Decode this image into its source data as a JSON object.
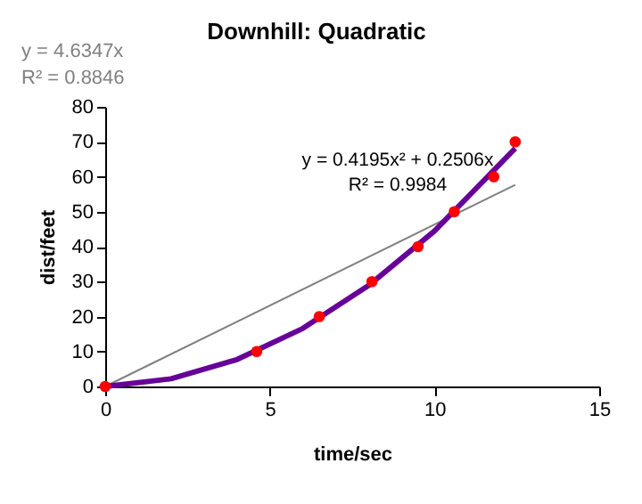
{
  "chart_data": {
    "type": "scatter",
    "title": "Downhill: Quadratic",
    "xlabel": "time/sec",
    "ylabel": "dist/feet",
    "annotations": [
      "y = 4.6347x\nR² = 0.8846",
      "y = 0.4195x² + 0.2506x\nR² = 0.9984"
    ],
    "series": [
      {
        "type": "line",
        "color": "#808080",
        "x": [
          0,
          12.45
        ],
        "values": [
          0,
          57.7
        ],
        "marker": "none"
      },
      {
        "type": "line",
        "color": "#660099",
        "x": [
          0,
          2,
          4,
          6,
          8,
          10,
          12.45
        ],
        "values": [
          0,
          2.2,
          7.7,
          16.6,
          28.9,
          44.5,
          68.1
        ],
        "marker": "none"
      },
      {
        "color": "#ff0000",
        "x": [
          0,
          4.6,
          6.5,
          8.1,
          9.5,
          10.6,
          11.8,
          12.45
        ],
        "values": [
          0,
          10,
          20,
          30,
          40,
          50,
          60,
          70
        ],
        "marker": "circle"
      }
    ],
    "xlim": [
      0,
      15
    ],
    "xticks": [
      0,
      5,
      10,
      15
    ],
    "ylim": [
      0,
      80
    ],
    "yticks": [
      0,
      10,
      20,
      30,
      40,
      50,
      60,
      70,
      80
    ],
    "grid": false
  }
}
